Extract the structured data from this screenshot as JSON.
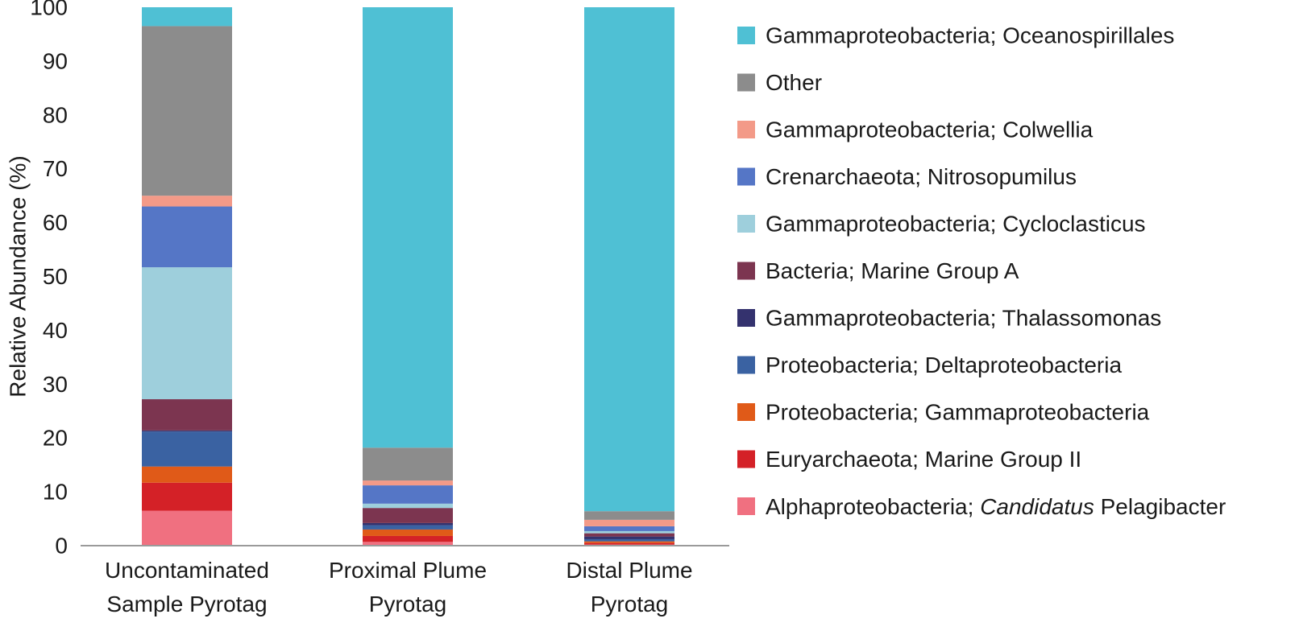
{
  "chart_data": {
    "type": "bar",
    "stacked": true,
    "ylabel": "Relative Abundance (%)",
    "xlabel": "",
    "ylim": [
      0,
      100
    ],
    "yticks": [
      "0",
      "10",
      "20",
      "30",
      "40",
      "50",
      "60",
      "70",
      "80",
      "90",
      "100"
    ],
    "categories": [
      [
        "Uncontaminated",
        "Sample Pyrotag"
      ],
      [
        "Proximal Plume",
        "Pyrotag"
      ],
      [
        "Distal Plume",
        "Pyrotag"
      ]
    ],
    "legend_position": "right",
    "series": [
      {
        "name": "Alphaproteobacteria; Candidatus Pelagibacter",
        "name_prefix": "Alphaproteobacteria; ",
        "name_italic": "Candidatus",
        "name_suffix": " Pelagibacter",
        "color": "#f07080",
        "values": [
          6.5,
          0.7,
          0.2
        ]
      },
      {
        "name": "Euryarchaeota; Marine Group II",
        "color": "#d42127",
        "values": [
          5.2,
          1.1,
          0.3
        ]
      },
      {
        "name": "Proteobacteria; Gammaproteobacteria",
        "color": "#e05a18",
        "values": [
          3.0,
          1.2,
          0.3
        ]
      },
      {
        "name": "Proteobacteria; Deltaproteobacteria",
        "color": "#3a62a2",
        "values": [
          6.5,
          0.8,
          0.4
        ]
      },
      {
        "name": "Gammaproteobacteria; Thalassomonas",
        "color": "#34326e",
        "values": [
          0.2,
          0.4,
          0.5
        ]
      },
      {
        "name": "Bacteria; Marine Group A",
        "color": "#7c3550",
        "values": [
          5.8,
          2.8,
          0.6
        ]
      },
      {
        "name": "Gammaproteobacteria; Cycloclasticus",
        "color": "#9ecfdc",
        "values": [
          24.5,
          0.8,
          0.4
        ]
      },
      {
        "name": "Crenarchaeota; Nitrosopumilus",
        "color": "#5576c6",
        "values": [
          11.3,
          3.4,
          0.9
        ]
      },
      {
        "name": "Gammaproteobacteria; Colwellia",
        "color": "#f39a88",
        "values": [
          2.0,
          0.9,
          1.2
        ]
      },
      {
        "name": "Other",
        "color": "#8c8c8c",
        "values": [
          31.5,
          6.1,
          1.6
        ]
      },
      {
        "name": "Gammaproteobacteria; Oceanospirillales",
        "color": "#4fc0d4",
        "values": [
          3.5,
          81.8,
          93.6
        ]
      }
    ]
  }
}
